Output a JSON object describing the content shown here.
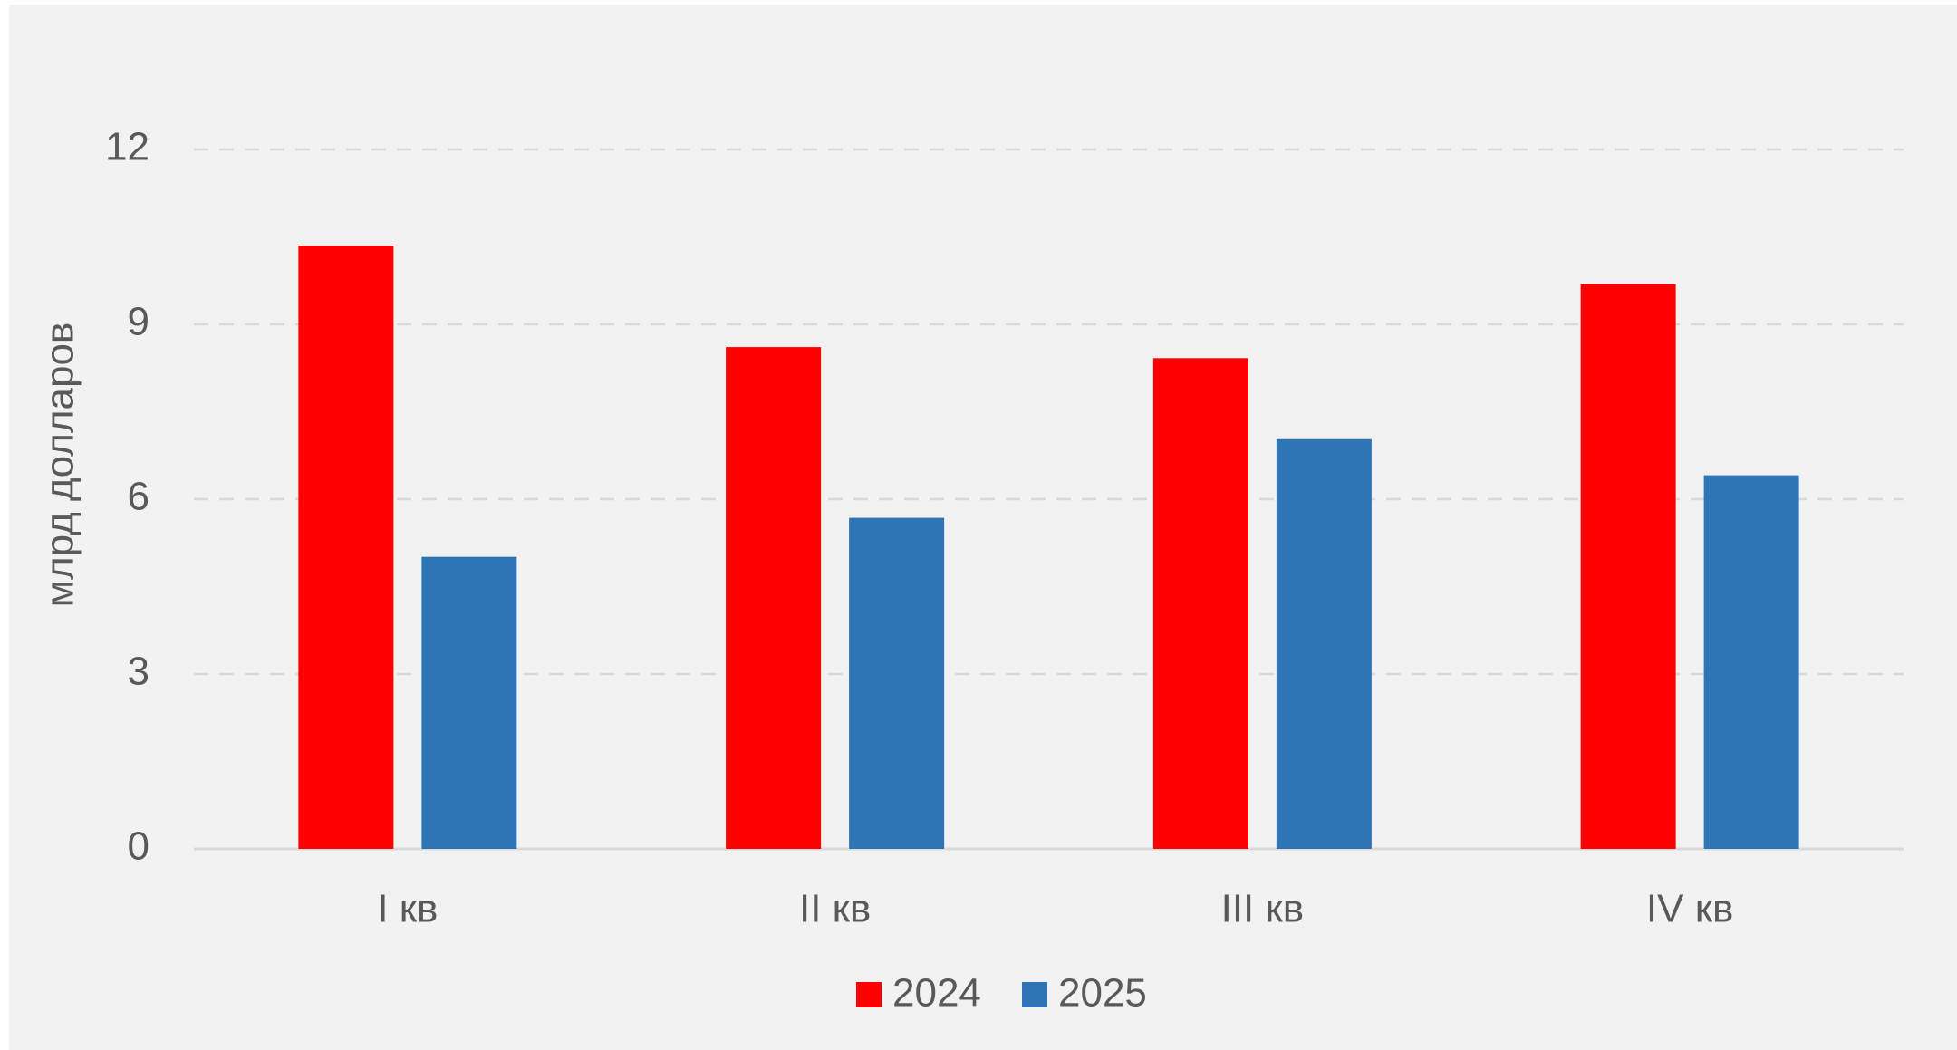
{
  "chart_data": {
    "type": "bar",
    "y_label": "млрд долларов",
    "categories": [
      "I кв",
      "II кв",
      "III кв",
      "IV кв"
    ],
    "series": [
      {
        "name": "2024",
        "color": "#ff0000",
        "values": [
          10.35,
          8.61,
          8.42,
          9.69
        ]
      },
      {
        "name": "2025",
        "color": "#2e75b6",
        "values": [
          5.01,
          5.68,
          7.03,
          6.41
        ]
      }
    ],
    "ylim": [
      0,
      12
    ],
    "yticks": [
      0,
      3,
      6,
      9,
      12
    ],
    "grid": true
  }
}
